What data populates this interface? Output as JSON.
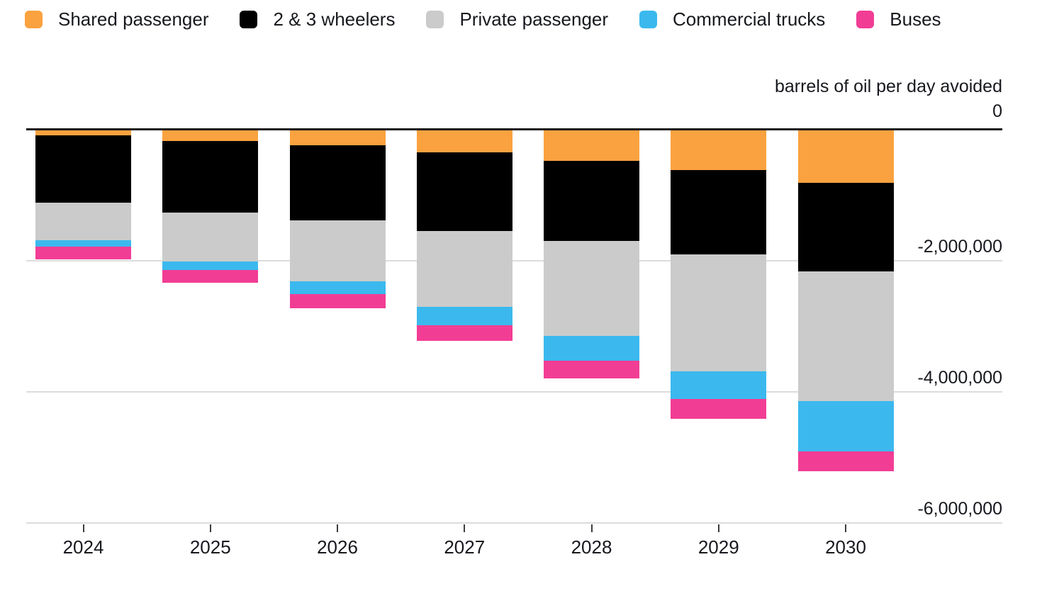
{
  "legend": {
    "items": [
      {
        "key": "shared-passenger",
        "label": "Shared passenger",
        "color": "#FAA23F"
      },
      {
        "key": "two-three-wheelers",
        "label": "2 & 3 wheelers",
        "color": "#000000"
      },
      {
        "key": "private-passenger",
        "label": "Private passenger",
        "color": "#CBCBCB"
      },
      {
        "key": "commercial-trucks",
        "label": "Commercial trucks",
        "color": "#3BB9EE"
      },
      {
        "key": "buses",
        "label": "Buses",
        "color": "#F23D95"
      }
    ]
  },
  "axis": {
    "title": "barrels of oil per day avoided",
    "zero_label": "0",
    "y_ticks": [
      {
        "label": "-2,000,000",
        "value": -2000000
      },
      {
        "label": "-4,000,000",
        "value": -4000000
      },
      {
        "label": "-6,000,000",
        "value": -6000000
      }
    ],
    "y_min": -6000000,
    "y_max": 0
  },
  "chart_data": {
    "type": "bar",
    "stacked": true,
    "orientation": "vertical-negative",
    "title": "barrels of oil per day avoided",
    "categories": [
      "2024",
      "2025",
      "2026",
      "2027",
      "2028",
      "2029",
      "2030"
    ],
    "series": [
      {
        "name": "Shared passenger",
        "key": "shared-passenger",
        "color": "#FAA23F",
        "values": [
          -75000,
          -160000,
          -225000,
          -335000,
          -465000,
          -605000,
          -800000
        ]
      },
      {
        "name": "2 & 3 wheelers",
        "key": "two-three-wheelers",
        "color": "#000000",
        "values": [
          -1025000,
          -1090000,
          -1145000,
          -1200000,
          -1220000,
          -1285000,
          -1350000
        ]
      },
      {
        "name": "Private passenger",
        "key": "private-passenger",
        "color": "#CBCBCB",
        "values": [
          -575000,
          -745000,
          -930000,
          -1155000,
          -1450000,
          -1785000,
          -1980000
        ]
      },
      {
        "name": "Commercial trucks",
        "key": "commercial-trucks",
        "color": "#3BB9EE",
        "values": [
          -100000,
          -140000,
          -195000,
          -280000,
          -380000,
          -420000,
          -770000
        ]
      },
      {
        "name": "Buses",
        "key": "buses",
        "color": "#F23D95",
        "values": [
          -195000,
          -195000,
          -215000,
          -240000,
          -270000,
          -305000,
          -300000
        ]
      }
    ],
    "totals": [
      -1970000,
      -2330000,
      -2710000,
      -3210000,
      -3785000,
      -4400000,
      -5200000
    ],
    "ylim": [
      -6000000,
      0
    ],
    "grid": "horizontal",
    "legend_position": "top-left"
  }
}
